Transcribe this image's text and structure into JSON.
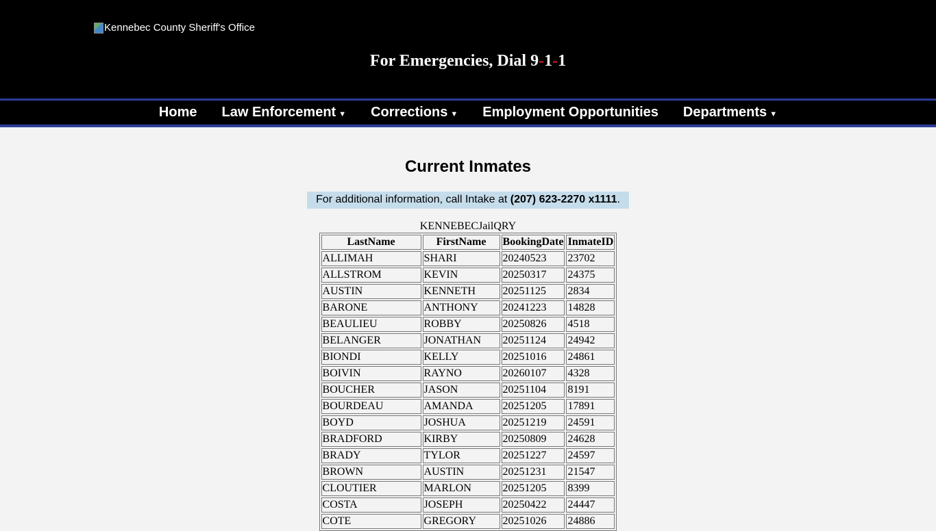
{
  "header": {
    "logo_alt": "Kennebec County Sheriff's Office",
    "emergency_prefix": "For Emergencies, Dial ",
    "emergency_digits": [
      "9",
      "-",
      "1",
      "-",
      "1"
    ]
  },
  "nav": [
    {
      "label": "Home",
      "dropdown": false
    },
    {
      "label": "Law Enforcement",
      "dropdown": true
    },
    {
      "label": "Corrections",
      "dropdown": true
    },
    {
      "label": "Employment Opportunities",
      "dropdown": false
    },
    {
      "label": "Departments",
      "dropdown": true
    }
  ],
  "main": {
    "title": "Current Inmates",
    "info_text": "For additional information, call Intake at ",
    "info_phone": "(207) 623-2270 x1111",
    "info_end": ".",
    "table": {
      "caption": "KENNEBECJailQRY",
      "columns": [
        "LastName",
        "FirstName",
        "BookingDate",
        "InmateID"
      ],
      "rows": [
        [
          "ALLIMAH",
          "SHARI",
          "20240523",
          "23702"
        ],
        [
          "ALLSTROM",
          "KEVIN",
          "20250317",
          "24375"
        ],
        [
          "AUSTIN",
          "KENNETH",
          "20251125",
          "2834"
        ],
        [
          "BARONE",
          "ANTHONY",
          "20241223",
          "14828"
        ],
        [
          "BEAULIEU",
          "ROBBY",
          "20250826",
          "4518"
        ],
        [
          "BELANGER",
          "JONATHAN",
          "20251124",
          "24942"
        ],
        [
          "BIONDI",
          "KELLY",
          "20251016",
          "24861"
        ],
        [
          "BOIVIN",
          "RAYNO",
          "20260107",
          "4328"
        ],
        [
          "BOUCHER",
          "JASON",
          "20251104",
          "8191"
        ],
        [
          "BOURDEAU",
          "AMANDA",
          "20251205",
          "17891"
        ],
        [
          "BOYD",
          "JOSHUA",
          "20251219",
          "24591"
        ],
        [
          "BRADFORD",
          "KIRBY",
          "20250809",
          "24628"
        ],
        [
          "BRADY",
          "TYLOR",
          "20251227",
          "24597"
        ],
        [
          "BROWN",
          "AUSTIN",
          "20251231",
          "21547"
        ],
        [
          "CLOUTIER",
          "MARLON",
          "20251205",
          "8399"
        ],
        [
          "COSTA",
          "JOSEPH",
          "20250422",
          "24447"
        ],
        [
          "COTE",
          "GREGORY",
          "20251026",
          "24886"
        ]
      ]
    }
  },
  "colors": {
    "nav_border": "#2b3c9b",
    "info_bg": "#c5dceb",
    "emergency_dash": "#e02020"
  }
}
